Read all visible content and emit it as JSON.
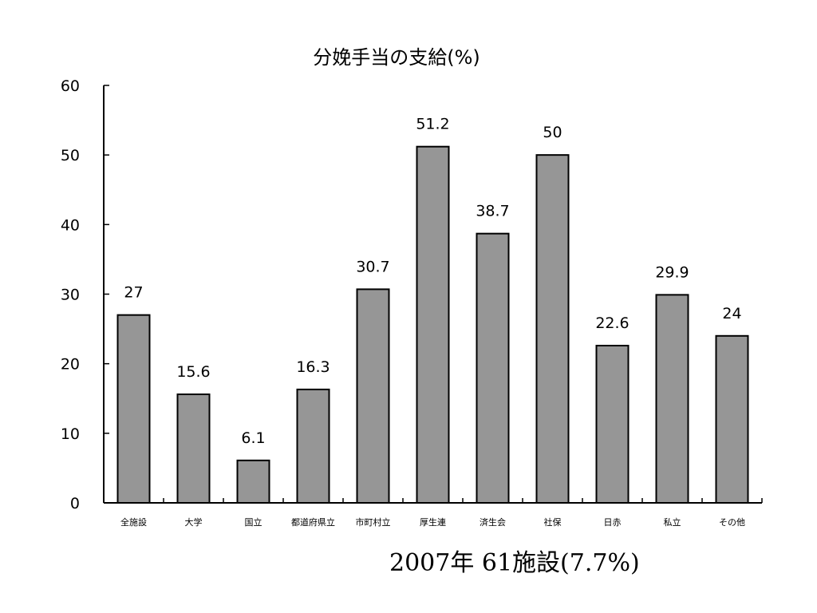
{
  "chart_data": {
    "type": "bar",
    "title": "分娩手当の支給(%)",
    "xlabel": "",
    "ylabel": "",
    "ylim": [
      0,
      60
    ],
    "yticks": [
      0,
      10,
      20,
      30,
      40,
      50,
      60
    ],
    "categories": [
      "全施設",
      "大学",
      "国立",
      "都道府県立",
      "市町村立",
      "厚生連",
      "済生会",
      "社保",
      "日赤",
      "私立",
      "その他"
    ],
    "values": [
      27,
      15.6,
      6.1,
      16.3,
      30.7,
      51.2,
      38.7,
      50,
      22.6,
      29.9,
      24
    ],
    "data_labels": [
      "27",
      "15.6",
      "6.1",
      "16.3",
      "30.7",
      "51.2",
      "38.7",
      "50",
      "22.6",
      "29.9",
      "24"
    ],
    "grid": false,
    "legend": "none",
    "bar_color": "#969696",
    "bar_edge_color": "#000000"
  },
  "footnote": "2007年  61施設(7.7%)"
}
